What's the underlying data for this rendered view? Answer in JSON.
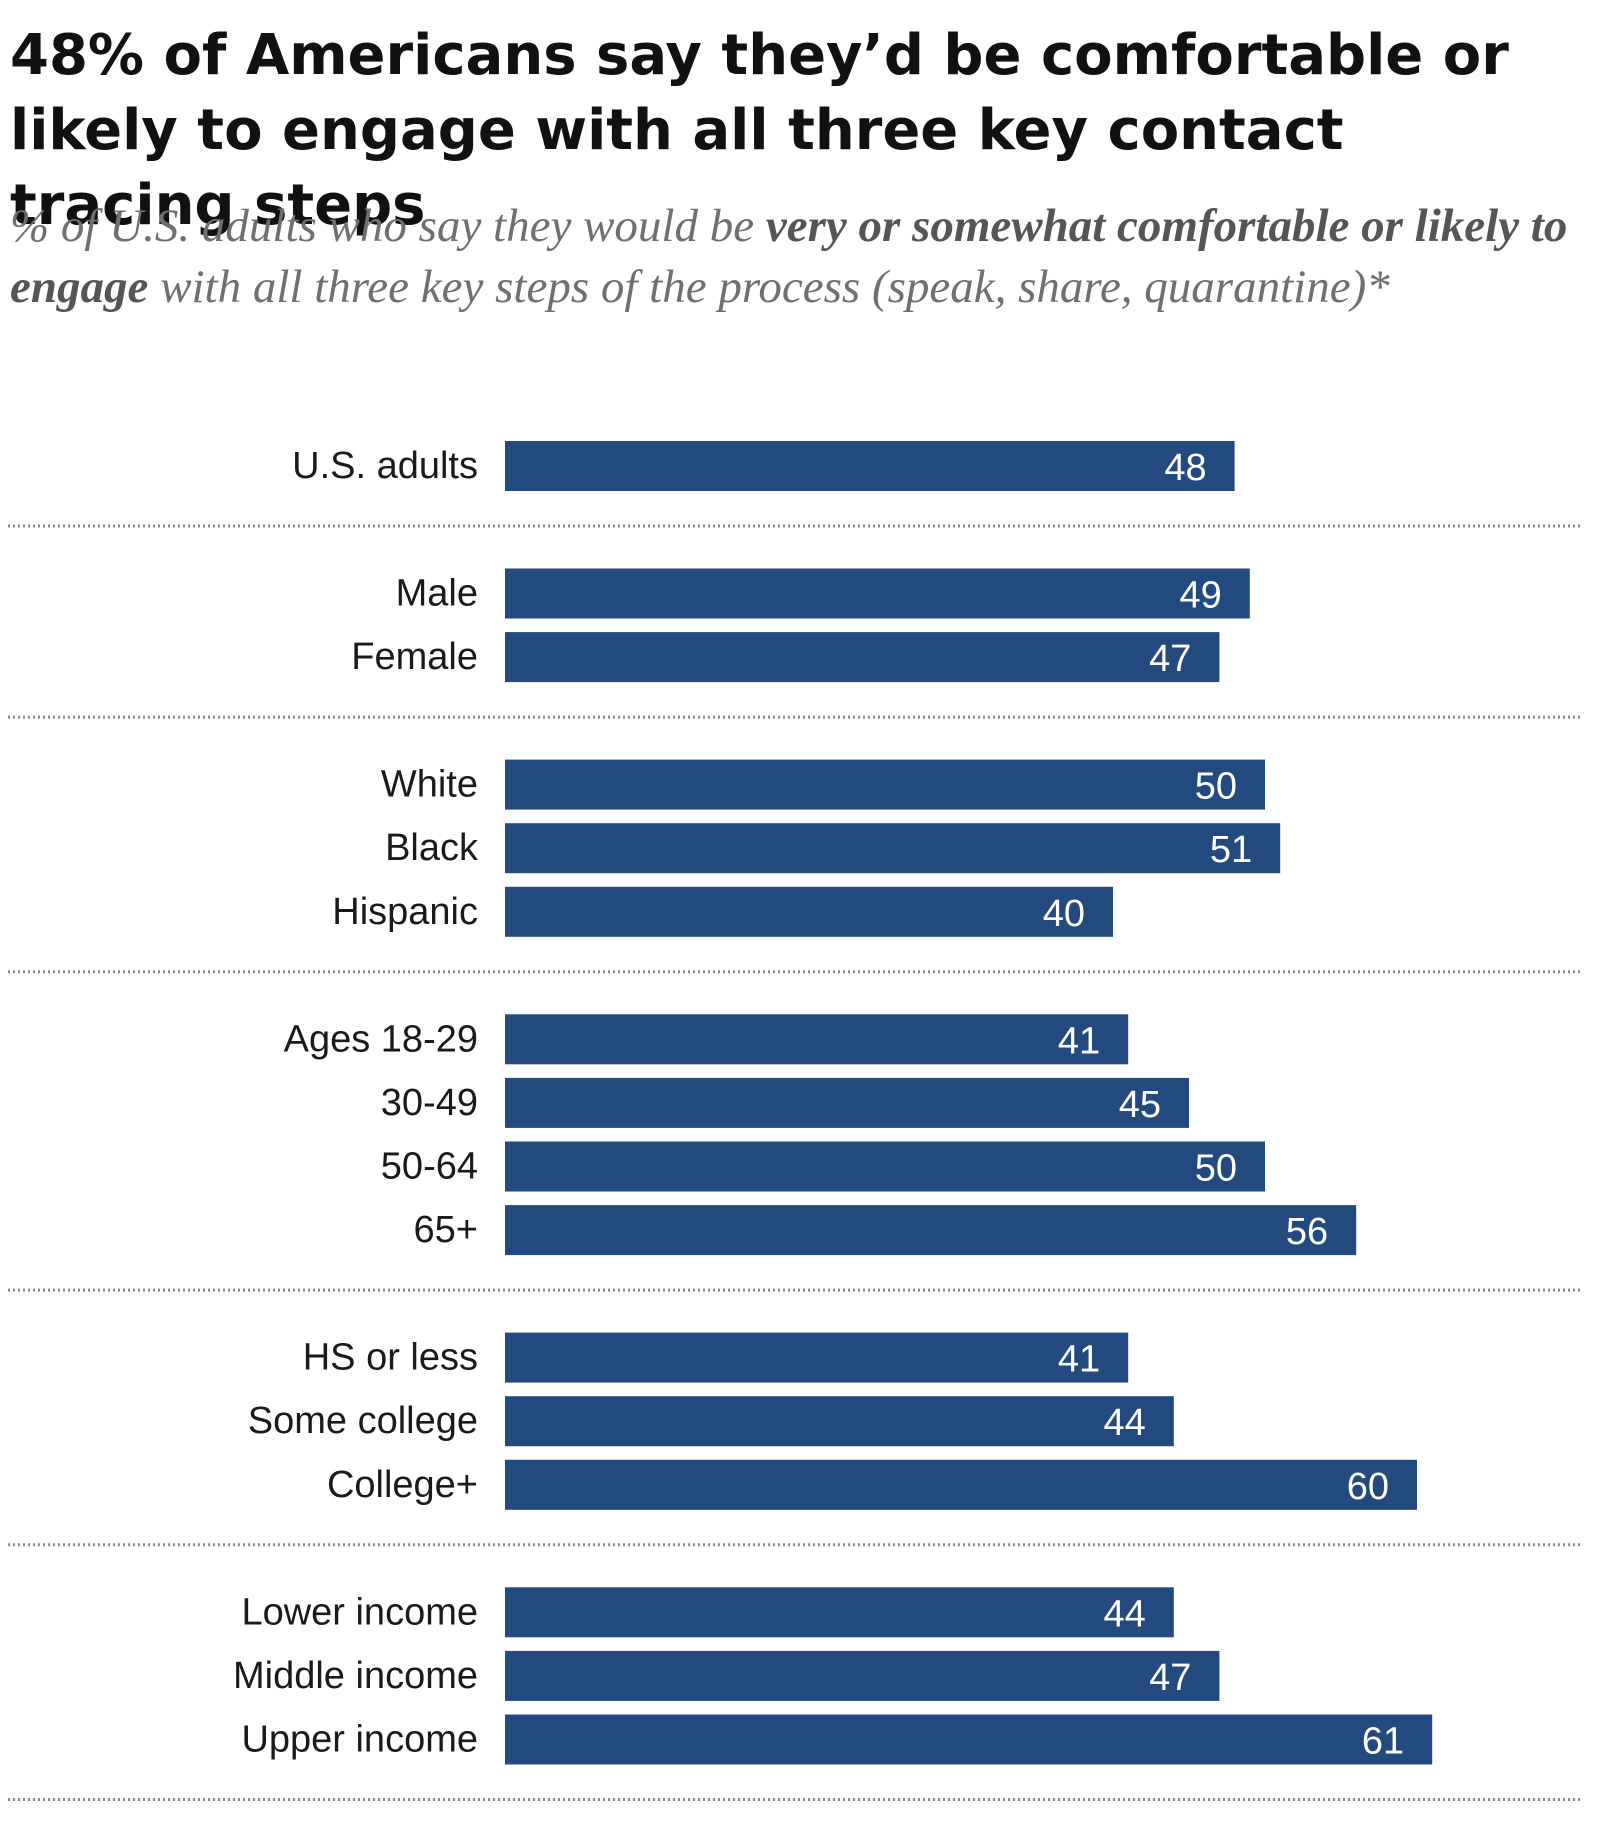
{
  "chart_data": {
    "type": "bar",
    "orientation": "horizontal",
    "title": "48% of Americans say they’d be comfortable or likely to engage with all three key contact tracing steps",
    "subtitle": {
      "pre": "% of U.S. adults who say they would be ",
      "bold": "very or somewhat comfortable or likely to engage",
      "post": " with all three key steps of the process (speak, share, quarantine)*"
    },
    "groups": [
      {
        "categories": [
          "U.S. adults"
        ],
        "values": [
          48
        ]
      },
      {
        "categories": [
          "Male",
          "Female"
        ],
        "values": [
          49,
          47
        ]
      },
      {
        "categories": [
          "White",
          "Black",
          "Hispanic"
        ],
        "values": [
          50,
          51,
          40
        ]
      },
      {
        "categories": [
          "Ages 18-29",
          "30-49",
          "50-64",
          "65+"
        ],
        "values": [
          41,
          45,
          50,
          56
        ]
      },
      {
        "categories": [
          "HS or less",
          "Some college",
          "College+"
        ],
        "values": [
          41,
          44,
          60
        ]
      },
      {
        "categories": [
          "Lower income",
          "Middle income",
          "Upper income"
        ],
        "values": [
          44,
          47,
          61
        ]
      }
    ],
    "bar_color": "#234a7e",
    "value_label_color": "#ffffff",
    "separator_style": "dotted",
    "xlim": [
      0,
      100
    ],
    "grid": false,
    "legend": "none"
  }
}
